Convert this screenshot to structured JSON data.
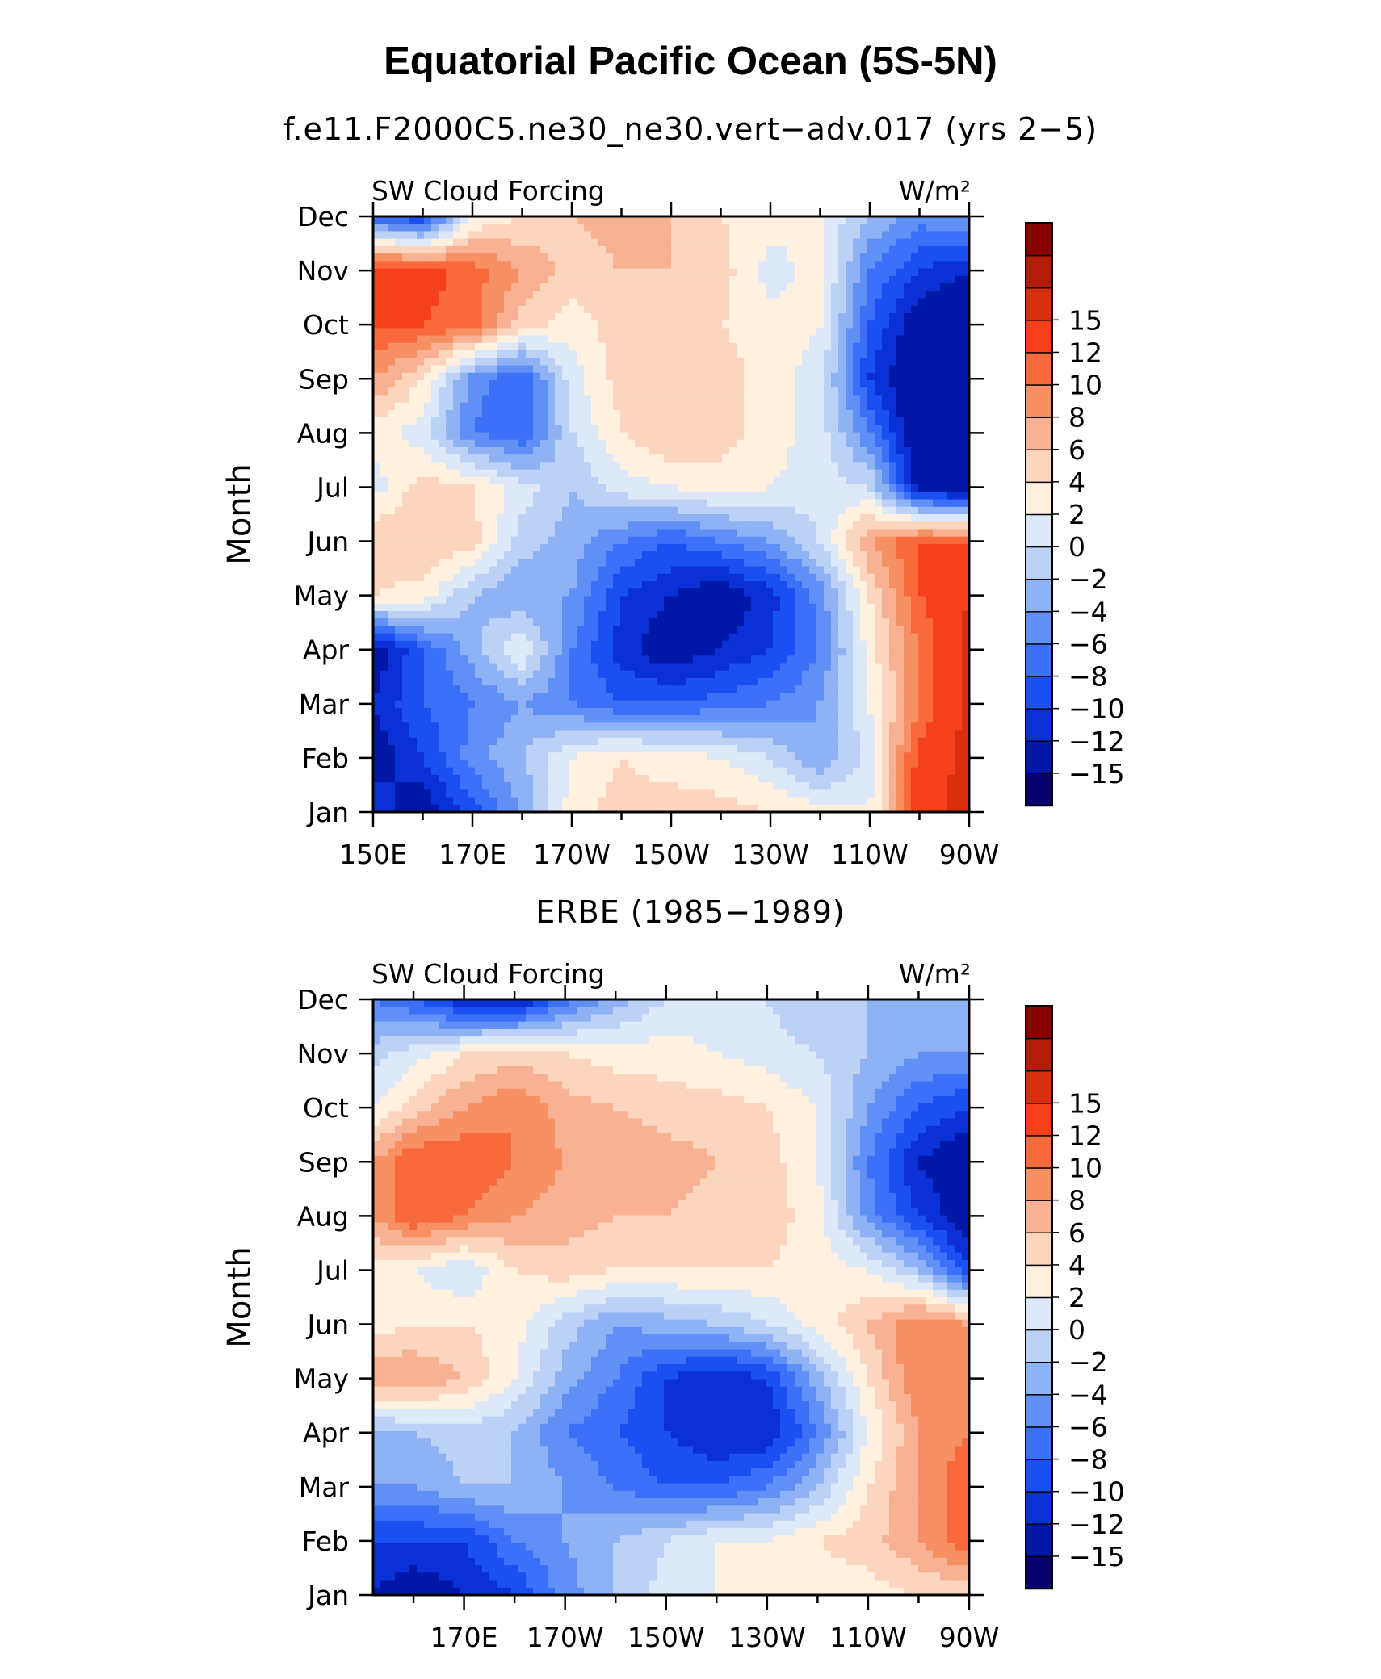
{
  "title": "Equatorial Pacific Ocean (5S-5N)",
  "chart_data": [
    {
      "type": "heatmap",
      "title": "f.e11.F2000C5.ne30_ne30.vert−adv.017 (yrs 2−5)",
      "left_label": "SW Cloud Forcing",
      "right_label": "W/m²",
      "xlabel": "",
      "ylabel": "Month",
      "x_ticks": [
        "150E",
        "170E",
        "170W",
        "150W",
        "130W",
        "110W",
        "90W"
      ],
      "x_tick_lon": [
        150,
        170,
        190,
        210,
        230,
        250,
        270
      ],
      "y_ticks": [
        "Jan",
        "Feb",
        "Mar",
        "Apr",
        "May",
        "Jun",
        "Jul",
        "Aug",
        "Sep",
        "Oct",
        "Nov",
        "Dec"
      ],
      "xlim": [
        150,
        270
      ],
      "ylim": [
        1,
        12
      ],
      "x": [
        150,
        160,
        170,
        180,
        190,
        200,
        210,
        220,
        230,
        240,
        250,
        260,
        270
      ],
      "z": [
        [
          -10,
          -14,
          -9,
          -4,
          3,
          5,
          5,
          5,
          4,
          3,
          2,
          14,
          16
        ],
        [
          -14,
          -10,
          -5,
          -2,
          2,
          4,
          3,
          2,
          0,
          -4,
          1,
          13,
          16
        ],
        [
          -12,
          -8,
          -6,
          -4,
          -6,
          -8,
          -8,
          -7,
          -6,
          -4,
          2,
          10,
          16
        ],
        [
          -14,
          -8,
          -3,
          2,
          -6,
          -11,
          -14,
          -12,
          -10,
          -6,
          3,
          10,
          16
        ],
        [
          4,
          3,
          -2,
          -4,
          -4,
          -10,
          -12,
          -14,
          -11,
          -5,
          4,
          12,
          15
        ],
        [
          6,
          6,
          5,
          -1,
          -3,
          -6,
          -8,
          -6,
          -4,
          0,
          8,
          12,
          12
        ],
        [
          1,
          5,
          4,
          1,
          -2,
          1,
          2,
          3,
          2,
          1,
          0,
          -13,
          -15
        ],
        [
          3,
          1,
          -6,
          -8,
          0,
          4,
          6,
          5,
          3,
          1,
          -6,
          -15,
          -15
        ],
        [
          8,
          4,
          -5,
          -8,
          1,
          5,
          6,
          5,
          3,
          1,
          -10,
          -15,
          -15
        ],
        [
          12,
          12,
          11,
          5,
          3,
          5,
          5,
          4,
          3,
          2,
          -8,
          -14,
          -15
        ],
        [
          14,
          13,
          11,
          8,
          5,
          6,
          6,
          5,
          1,
          3,
          -6,
          -10,
          -12
        ],
        [
          -8,
          -10,
          2,
          4,
          6,
          7,
          6,
          4,
          3,
          2,
          -2,
          -5,
          -4
        ]
      ],
      "contour_levels": [
        -15,
        -12,
        -10,
        -8,
        -6,
        -4,
        -2,
        0,
        2,
        4,
        6,
        8,
        10,
        12,
        15
      ],
      "colorbar_labels": [
        "15",
        "12",
        "10",
        "8",
        "6",
        "4",
        "2",
        "0",
        "−2",
        "−4",
        "−6",
        "−8",
        "−10",
        "−12",
        "−15"
      ],
      "colors": [
        "#08006e",
        "#0018a8",
        "#0a30d6",
        "#1a50f2",
        "#3c70f8",
        "#6090f5",
        "#8fb2f5",
        "#bcd1f6",
        "#dde8f8",
        "#fff0e0",
        "#fbd5bd",
        "#f8b192",
        "#f79063",
        "#f86a3c",
        "#f5401b",
        "#d8300f",
        "#b41c0a",
        "#870000"
      ]
    },
    {
      "type": "heatmap",
      "title": "ERBE (1985−1989)",
      "left_label": "SW Cloud Forcing",
      "right_label": "W/m²",
      "xlabel": "",
      "ylabel": "Month",
      "x_ticks": [
        "170E",
        "170W",
        "150W",
        "130W",
        "110W",
        "90W"
      ],
      "x_tick_lon": [
        170,
        190,
        210,
        230,
        250,
        270
      ],
      "y_ticks": [
        "Jan",
        "Feb",
        "Mar",
        "Apr",
        "May",
        "Jun",
        "Jul",
        "Aug",
        "Sep",
        "Oct",
        "Nov",
        "Dec"
      ],
      "xlim": [
        152,
        270
      ],
      "ylim": [
        1,
        12
      ],
      "x": [
        152,
        160,
        170,
        180,
        190,
        200,
        210,
        220,
        230,
        240,
        250,
        260,
        270
      ],
      "z": [
        [
          -12,
          -14,
          -12,
          -10,
          -5,
          -2,
          1,
          2,
          2,
          3,
          3,
          4,
          4
        ],
        [
          -10,
          -10,
          -10,
          -6,
          -4,
          -2,
          0,
          2,
          2,
          4,
          5,
          8,
          12
        ],
        [
          -4,
          -4,
          -2,
          -2,
          -4,
          -6,
          -8,
          -8,
          -6,
          -2,
          4,
          8,
          12
        ],
        [
          -3,
          -2,
          -1,
          -2,
          -6,
          -8,
          -10,
          -12,
          -12,
          -6,
          2,
          8,
          10
        ],
        [
          8,
          8,
          6,
          2,
          -3,
          -6,
          -10,
          -12,
          -10,
          -3,
          4,
          10,
          10
        ],
        [
          3,
          4,
          4,
          3,
          -1,
          -4,
          -3,
          -2,
          0,
          3,
          6,
          10,
          8
        ],
        [
          3,
          2,
          0,
          4,
          5,
          4,
          4,
          4,
          4,
          3,
          2,
          -2,
          -10
        ],
        [
          8,
          12,
          10,
          8,
          7,
          6,
          6,
          5,
          5,
          3,
          -5,
          -10,
          -14
        ],
        [
          8,
          12,
          12,
          10,
          8,
          8,
          7,
          6,
          5,
          2,
          -6,
          -12,
          -15
        ],
        [
          2,
          5,
          8,
          10,
          7,
          6,
          5,
          5,
          4,
          2,
          -4,
          -8,
          -10
        ],
        [
          -1,
          1,
          4,
          5,
          4,
          3,
          3,
          2,
          1,
          0,
          -2,
          -4,
          -4
        ],
        [
          -6,
          -8,
          -12,
          -13,
          -7,
          -3,
          0,
          1,
          0,
          -2,
          -2,
          -3,
          -2
        ]
      ],
      "contour_levels": [
        -15,
        -12,
        -10,
        -8,
        -6,
        -4,
        -2,
        0,
        2,
        4,
        6,
        8,
        10,
        12,
        15
      ],
      "colorbar_labels": [
        "15",
        "12",
        "10",
        "8",
        "6",
        "4",
        "2",
        "0",
        "−2",
        "−4",
        "−6",
        "−8",
        "−10",
        "−12",
        "−15"
      ],
      "colors": [
        "#08006e",
        "#0018a8",
        "#0a30d6",
        "#1a50f2",
        "#3c70f8",
        "#6090f5",
        "#8fb2f5",
        "#bcd1f6",
        "#dde8f8",
        "#fff0e0",
        "#fbd5bd",
        "#f8b192",
        "#f79063",
        "#f86a3c",
        "#f5401b",
        "#d8300f",
        "#b41c0a",
        "#870000"
      ]
    }
  ]
}
